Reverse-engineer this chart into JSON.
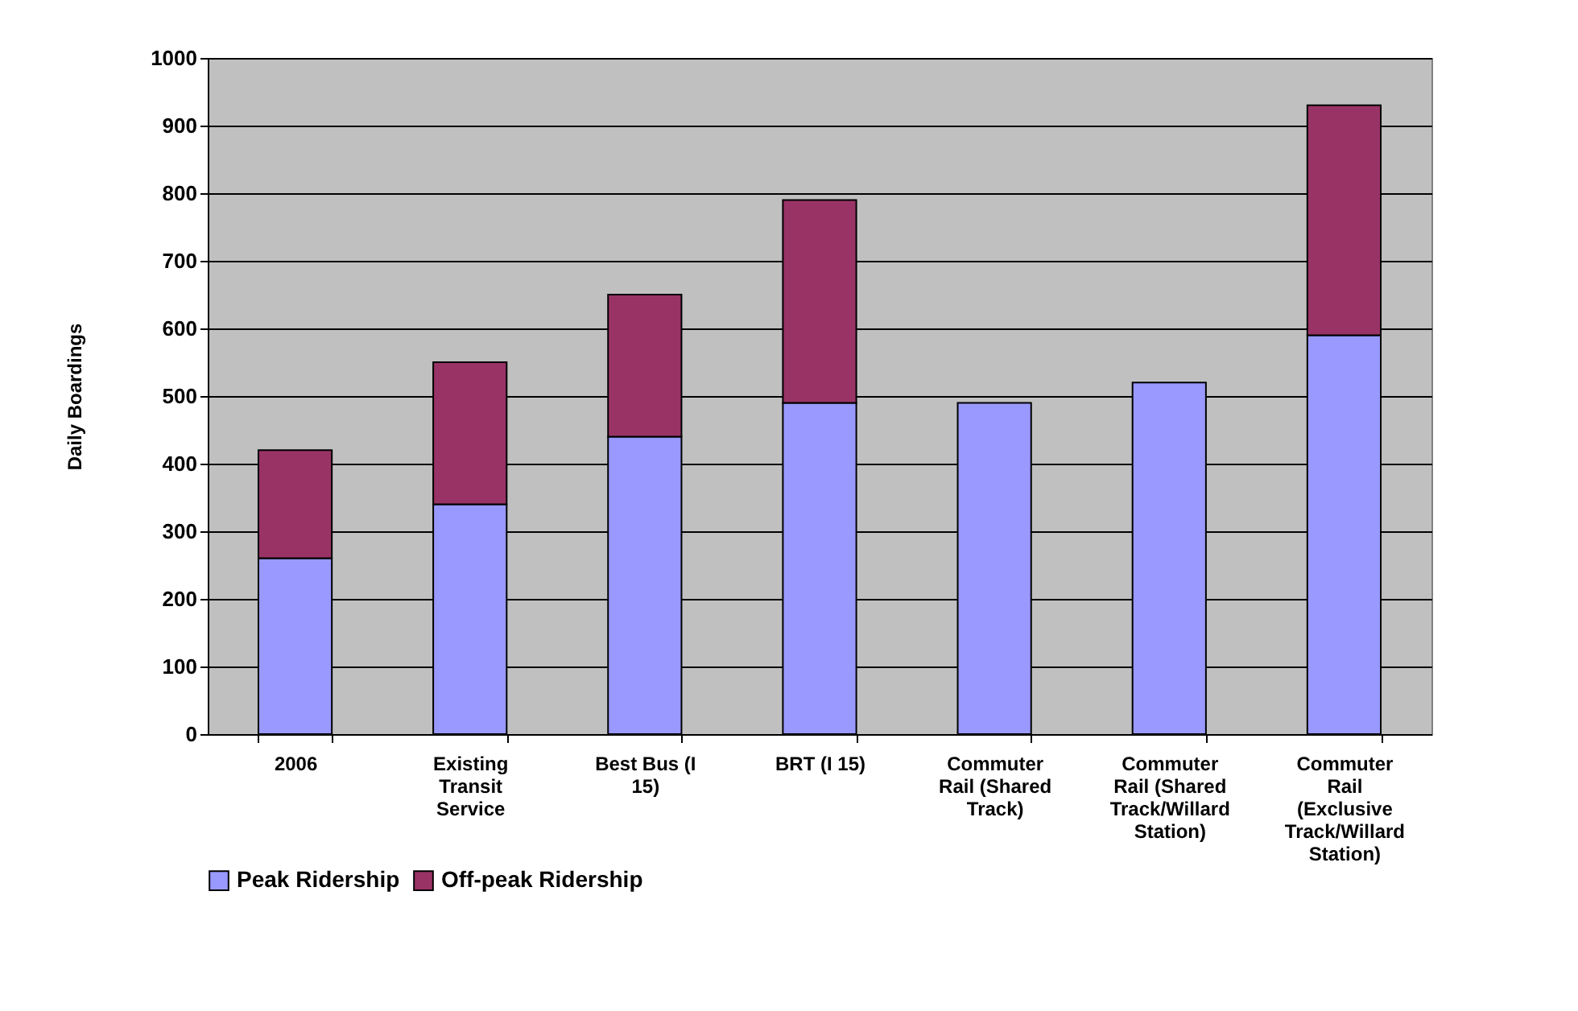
{
  "chart_data": {
    "type": "bar",
    "stacked": true,
    "ylabel": "Daily Boardings",
    "categories": [
      "2006",
      "Existing Transit Service",
      "Best Bus (I 15)",
      "BRT (I 15)",
      "Commuter Rail (Shared Track)",
      "Commuter Rail (Shared Track/Willard Station)",
      "Commuter Rail (Exclusive Track/Willard Station)"
    ],
    "series": [
      {
        "name": "Peak Ridership",
        "color": "#9999ff",
        "values": [
          260,
          340,
          440,
          490,
          490,
          520,
          590
        ]
      },
      {
        "name": "Off-peak Ridership",
        "color": "#993366",
        "values": [
          160,
          210,
          210,
          300,
          null,
          null,
          340
        ]
      }
    ],
    "ylim": [
      0,
      1000
    ],
    "yticks": [
      0,
      100,
      200,
      300,
      400,
      500,
      600,
      700,
      800,
      900,
      1000
    ],
    "grid": "y",
    "legend": "bottom"
  }
}
